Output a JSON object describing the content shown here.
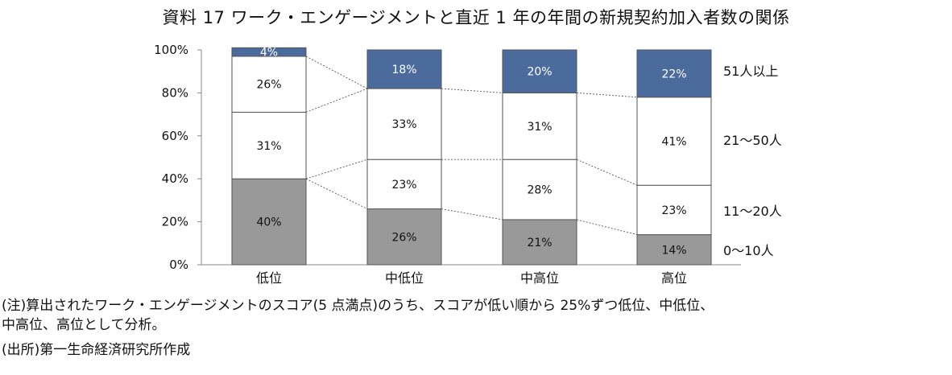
{
  "title": "資料 17 ワーク・エンゲージメントと直近 1 年の年間の新規契約加入者数の関係",
  "note_line1": "(注)算出されたワーク・エンゲージメントのスコア(5 点満点)のうち、スコアが低い順から 25%ずつ低位、中低位、",
  "note_line2": "中高位、高位として分析。",
  "source": "(出所)第一生命経済研究所作成",
  "colors": {
    "band_0_10": "#999999",
    "band_11_20": "#ffffff",
    "band_21_50": "#ffffff",
    "band_51_plus": "#4a6b9c"
  },
  "chart_data": {
    "type": "bar",
    "stacked": true,
    "percent_axis": true,
    "categories": [
      "低位",
      "中低位",
      "中高位",
      "高位"
    ],
    "series": [
      {
        "name": "0～10人",
        "values": [
          40,
          26,
          21,
          14
        ],
        "labels": [
          "40%",
          "26%",
          "21%",
          "14%"
        ]
      },
      {
        "name": "11～20人",
        "values": [
          0,
          23,
          28,
          23
        ],
        "labels": [
          "",
          "23%",
          "28%",
          "23%"
        ]
      },
      {
        "name": "21～50人",
        "values": [
          31,
          33,
          31,
          41
        ],
        "labels": [
          "31%",
          "33%",
          "31%",
          "41%"
        ]
      },
      {
        "name": "51人以上",
        "values": [
          26,
          0,
          0,
          0
        ],
        "labels": [
          "26%",
          "",
          "",
          ""
        ]
      },
      {
        "name": "",
        "values": [
          4,
          18,
          20,
          22
        ],
        "labels": [
          "4%",
          "18%",
          "20%",
          "22%"
        ]
      }
    ],
    "yticks": [
      "0%",
      "20%",
      "40%",
      "60%",
      "80%",
      "100%"
    ],
    "ylim": [
      0,
      100
    ],
    "legend_labels": [
      "51人以上",
      "21～50人",
      "11～20人",
      "0～10人"
    ],
    "legend_position": "right"
  }
}
